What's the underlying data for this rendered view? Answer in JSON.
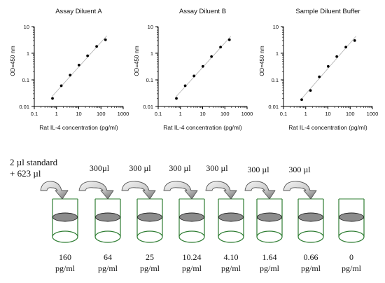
{
  "chart_data": [
    {
      "type": "scatter",
      "title": "Assay Diluent A",
      "xlabel": "Rat IL-4 concentration (pg/ml)",
      "ylabel": "OD=450 nm",
      "xscale": "log",
      "yscale": "log",
      "xlim": [
        0.1,
        1000
      ],
      "ylim": [
        0.01,
        10
      ],
      "xticks": [
        "0.1",
        "1",
        "10",
        "100",
        "1000"
      ],
      "yticks": [
        "0.01",
        "0.1",
        "1",
        "10"
      ],
      "x": [
        0.66,
        1.64,
        4.1,
        10.24,
        25,
        64,
        160
      ],
      "y": [
        0.02,
        0.06,
        0.15,
        0.36,
        0.8,
        1.8,
        3.2
      ],
      "trendline": true
    },
    {
      "type": "scatter",
      "title": "Assay Diluent B",
      "xlabel": "Rat IL-4 concentration (pg/ml)",
      "ylabel": "OD=450 nm",
      "xscale": "log",
      "yscale": "log",
      "xlim": [
        0.1,
        1000
      ],
      "ylim": [
        0.01,
        10
      ],
      "xticks": [
        "0.1",
        "1",
        "10",
        "100",
        "1000"
      ],
      "yticks": [
        "0.01",
        "0.1",
        "1",
        "10"
      ],
      "x": [
        0.66,
        1.64,
        4.1,
        10.24,
        25,
        64,
        160
      ],
      "y": [
        0.02,
        0.06,
        0.14,
        0.32,
        0.75,
        1.7,
        3.2
      ],
      "trendline": true
    },
    {
      "type": "scatter",
      "title": "Sample Diluent Buffer",
      "xlabel": "Rat IL-4 concentration (pg/ml)",
      "ylabel": "OD=450 nm",
      "xscale": "log",
      "yscale": "log",
      "xlim": [
        0.1,
        1000
      ],
      "ylim": [
        0.01,
        10
      ],
      "xticks": [
        "0.1",
        "1",
        "10",
        "100",
        "1000"
      ],
      "yticks": [
        "0.01",
        "0.1",
        "1",
        "10"
      ],
      "x": [
        0.66,
        1.64,
        4.1,
        10.24,
        25,
        64,
        160
      ],
      "y": [
        0.018,
        0.04,
        0.13,
        0.32,
        0.75,
        1.7,
        3.0
      ],
      "trendline": true
    }
  ],
  "dilution": {
    "start_text": [
      "2 µl standard",
      "+ 623 µl"
    ],
    "transfers": [
      "300µl",
      "300 µl",
      "300 µl",
      "300 µl",
      "300 µl",
      "300 µl"
    ],
    "tubes": [
      {
        "value": "160",
        "unit": "pg/ml"
      },
      {
        "value": "64",
        "unit": "pg/ml"
      },
      {
        "value": "25",
        "unit": "pg/ml"
      },
      {
        "value": "10.24",
        "unit": "pg/ml"
      },
      {
        "value": "4.10",
        "unit": "pg/ml"
      },
      {
        "value": "1.64",
        "unit": "pg/ml"
      },
      {
        "value": "0.66",
        "unit": "pg/ml"
      },
      {
        "value": "0",
        "unit": "pg/ml"
      }
    ]
  },
  "colors": {
    "tube_outline": "#2e7d32",
    "liquid": "#8c8c8c",
    "arrow_light": "#e8e8e8",
    "arrow_dark": "#7a7a7a",
    "trendline": "#b0b0b0",
    "points": "#000000"
  }
}
